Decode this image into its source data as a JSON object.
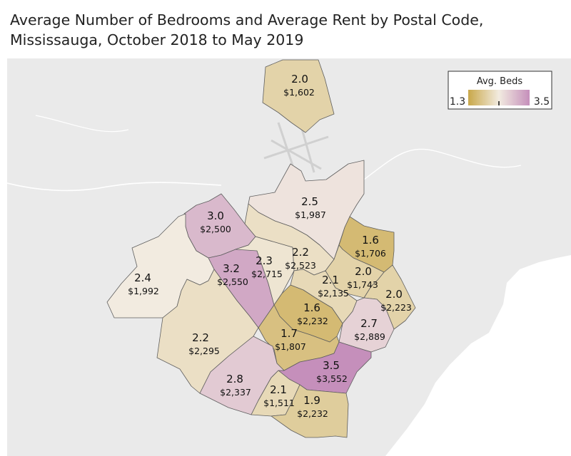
{
  "title": {
    "line1": "Average Number of Bedrooms and Average Rent by Postal Code,",
    "line2": "Mississauga, October 2018 to May 2019"
  },
  "legend": {
    "title": "Avg. Beds",
    "min_label": "1.3",
    "max_label": "3.5",
    "min": 1.3,
    "max": 3.5,
    "color_low": "#c9a84a",
    "color_mid": "#f2ebe0",
    "color_high": "#c58fbb"
  },
  "colors": {
    "land": "#eaeaea",
    "water": "#ffffff",
    "border": "#5e5e5e"
  },
  "regions": [
    {
      "id": "north-2-0",
      "beds": "2.0",
      "rent": "$1,602",
      "value": 2.0
    },
    {
      "id": "ne-2-5",
      "beds": "2.5",
      "rent": "$1,987",
      "value": 2.5
    },
    {
      "id": "nw-3-0",
      "beds": "3.0",
      "rent": "$2,500",
      "value": 3.0
    },
    {
      "id": "w-2-4",
      "beds": "2.4",
      "rent": "$1,992",
      "value": 2.4
    },
    {
      "id": "c-3-2",
      "beds": "3.2",
      "rent": "$2,550",
      "value": 3.2
    },
    {
      "id": "c-2-3",
      "beds": "2.3",
      "rent": "$2,715",
      "value": 2.3
    },
    {
      "id": "c-2-2-north",
      "beds": "2.2",
      "rent": "$2,523",
      "value": 2.2
    },
    {
      "id": "e-1-6-north",
      "beds": "1.6",
      "rent": "$1,706",
      "value": 1.6
    },
    {
      "id": "e-2-0",
      "beds": "2.0",
      "rent": "$1,743",
      "value": 2.0
    },
    {
      "id": "c-2-1",
      "beds": "2.1",
      "rent": "$2,135",
      "value": 2.1
    },
    {
      "id": "e-2-0-east",
      "beds": "2.0",
      "rent": "$2,223",
      "value": 2.0
    },
    {
      "id": "c-1-6",
      "beds": "1.6",
      "rent": "$2,232",
      "value": 1.6
    },
    {
      "id": "e-2-7",
      "beds": "2.7",
      "rent": "$2,889",
      "value": 2.7
    },
    {
      "id": "sw-2-2",
      "beds": "2.2",
      "rent": "$2,295",
      "value": 2.2
    },
    {
      "id": "c-1-7",
      "beds": "1.7",
      "rent": "$1,807",
      "value": 1.7
    },
    {
      "id": "s-3-5",
      "beds": "3.5",
      "rent": "$3,552",
      "value": 3.5
    },
    {
      "id": "s-2-8",
      "beds": "2.8",
      "rent": "$2,337",
      "value": 2.8
    },
    {
      "id": "s-2-1",
      "beds": "2.1",
      "rent": "$1,511",
      "value": 2.1
    },
    {
      "id": "s-1-9",
      "beds": "1.9",
      "rent": "$2,232",
      "value": 1.9
    }
  ]
}
